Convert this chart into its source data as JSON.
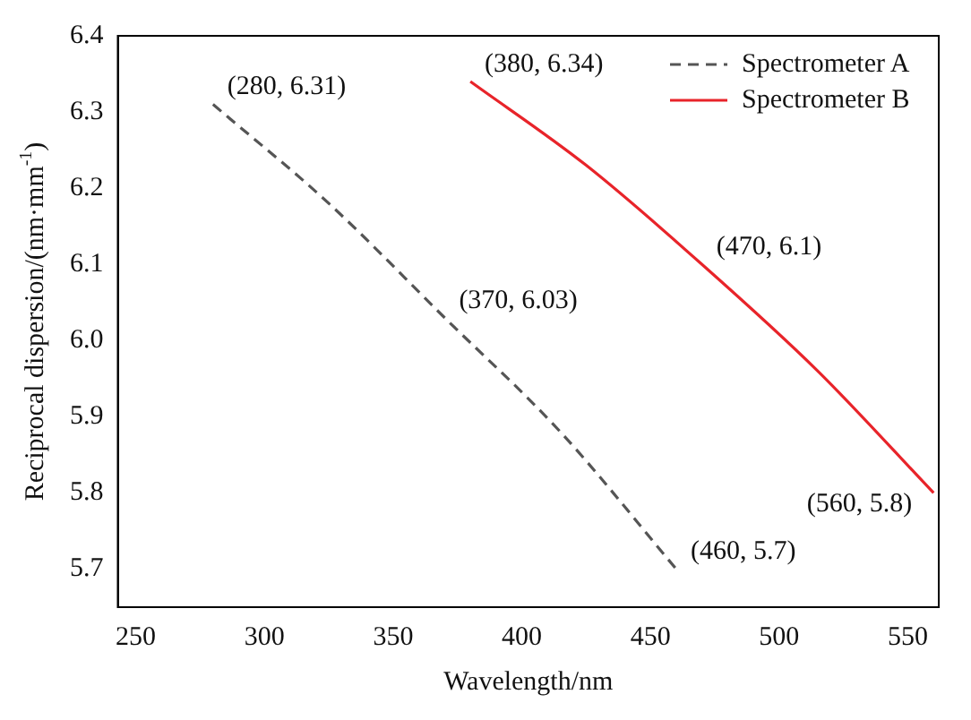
{
  "chart_data": {
    "type": "line",
    "xlabel": "Wavelength/nm",
    "ylabel": "Reciprocal dispersion/(nm·mm$^{-1}$)",
    "xlim": [
      243,
      562
    ],
    "xticks": [
      250,
      300,
      350,
      400,
      450,
      500,
      550
    ],
    "ylim": [
      5.65,
      6.4
    ],
    "yticks": [
      5.7,
      5.8,
      5.9,
      {
        "value": 6,
        "label": "6.0"
      },
      6.1,
      6.2,
      6.3,
      6.4
    ],
    "grid": false,
    "legend": "top right",
    "series": [
      {
        "name": "Spectrometer A",
        "color": "#555555",
        "line_style": "dashed",
        "x": [
          280,
          325,
          370,
          415,
          460
        ],
        "values": [
          6.31,
          6.18,
          6.03,
          5.88,
          5.7
        ]
      },
      {
        "name": "Spectrometer B",
        "color": "#e8242a",
        "line_style": "solid",
        "x": [
          380,
          425,
          470,
          515,
          560
        ],
        "values": [
          6.34,
          6.23,
          6.1,
          5.96,
          5.8
        ]
      }
    ],
    "annotations": [
      {
        "text": "(280, 6.31)",
        "x": 280,
        "y": 6.31
      },
      {
        "text": "(370, 6.03)",
        "x": 370,
        "y": 6.03
      },
      {
        "text": "(460, 5.7)",
        "x": 460,
        "y": 5.7
      },
      {
        "text": "(380, 6.34)",
        "x": 380,
        "y": 6.34
      },
      {
        "text": "(470, 6.1)",
        "x": 470,
        "y": 6.1
      },
      {
        "text": "(560, 5.8)",
        "x": 560,
        "y": 5.8
      }
    ]
  }
}
